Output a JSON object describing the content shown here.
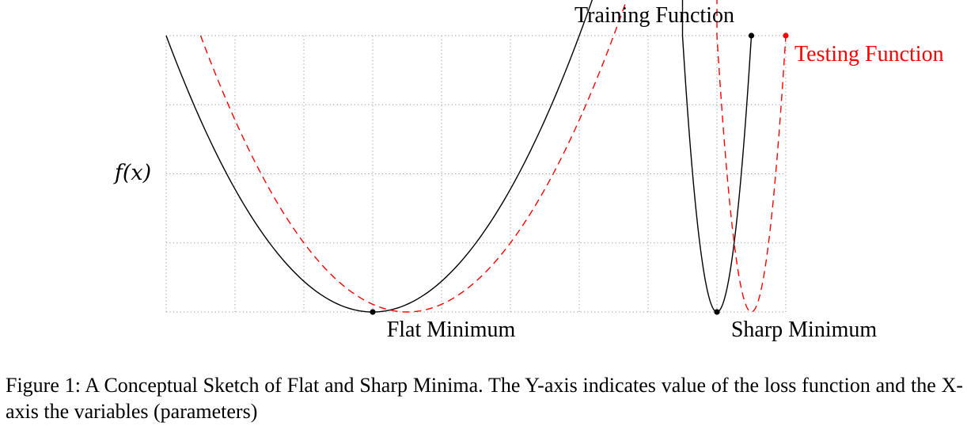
{
  "chart_data": {
    "type": "line",
    "title": "",
    "xlabel": "",
    "ylabel": "f(x)",
    "grid": true,
    "xlim": [
      0,
      9
    ],
    "ylim": [
      0,
      4
    ],
    "series": [
      {
        "name": "Training Function",
        "color": "#000000",
        "style": "solid",
        "segments": [
          {
            "kind": "parabola",
            "vertex_x": 3.0,
            "vertex_y": 0.0,
            "x_range": [
              0.0,
              7.5
            ],
            "y_at_start": 4.0
          },
          {
            "kind": "parabola",
            "vertex_x": 8.0,
            "vertex_y": 0.0,
            "x_range": [
              7.5,
              8.5
            ],
            "y_at_start": 4.0
          }
        ]
      },
      {
        "name": "Testing Function",
        "color": "#ff0000",
        "style": "dashed",
        "segments": [
          {
            "kind": "parabola",
            "vertex_x": 3.5,
            "vertex_y": 0.0,
            "x_range": [
              0.5,
              8.0
            ],
            "y_at_start": 4.0
          },
          {
            "kind": "parabola",
            "vertex_x": 8.5,
            "vertex_y": 0.0,
            "x_range": [
              8.0,
              9.0
            ],
            "y_at_start": 4.0
          }
        ]
      }
    ],
    "markers": [
      {
        "x": 3.0,
        "y": 0.0,
        "color": "#000000"
      },
      {
        "x": 8.0,
        "y": 0.0,
        "color": "#000000"
      },
      {
        "x": 8.5,
        "y": 4.0,
        "color": "#000000"
      },
      {
        "x": 9.0,
        "y": 4.0,
        "color": "#ff0000"
      }
    ],
    "annotations": {
      "training_function": "Training Function",
      "testing_function": "Testing Function",
      "flat_minimum": "Flat Minimum",
      "sharp_minimum": "Sharp Minimum"
    }
  },
  "caption": "Figure 1: A Conceptual Sketch of Flat and Sharp Minima. The Y-axis indicates value of the loss function and the X-axis the variables (parameters)"
}
